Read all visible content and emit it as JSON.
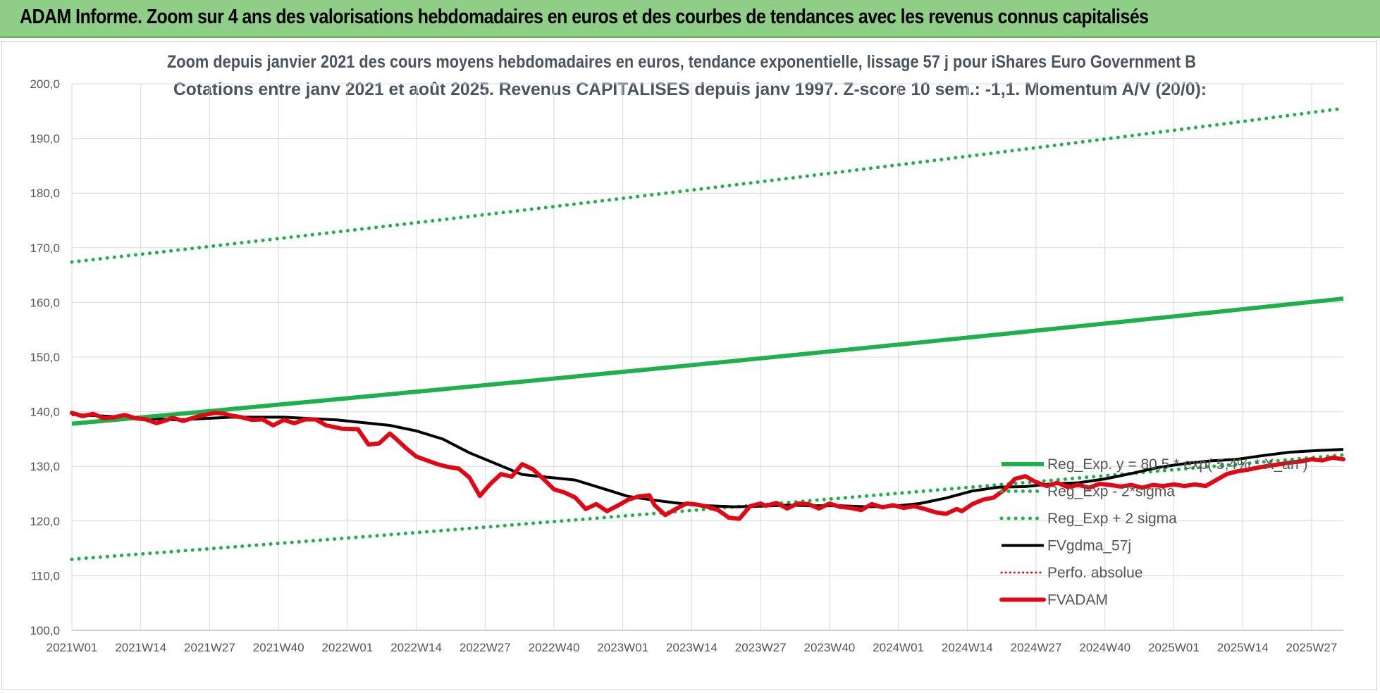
{
  "banner": {
    "title": "ADAM Informe. Zoom sur 4 ans des valorisations hebdomadaires en euros et des courbes de tendances avec les revenus connus capitalisés"
  },
  "colors": {
    "banner_bg": "#8fce86",
    "trend": "#1db04b",
    "sigma": "#1db04b",
    "fvgdma": "#000000",
    "perfo": "#e30613",
    "fvadam": "#e30613"
  },
  "chart_data": {
    "type": "line",
    "title": "Zoom depuis janvier 2021 des cours moyens hebdomadaires en euros, tendance exponentielle, lissage 57 j pour iShares Euro Government B",
    "subtitle": "Cotations entre janv 2021 et août 2025. Revenus CAPITALISES depuis janv 1997. Z-score 10 sem.: -1,1. Momentum A/V (20/0):",
    "xlabel": "",
    "ylabel": "",
    "ylim": [
      100,
      200
    ],
    "y_ticks": [
      "100,0",
      "110,0",
      "120,0",
      "130,0",
      "140,0",
      "150,0",
      "160,0",
      "170,0",
      "180,0",
      "190,0",
      "200,0"
    ],
    "x_ticks": [
      "2021W01",
      "2021W14",
      "2021W27",
      "2021W40",
      "2022W01",
      "2022W14",
      "2022W27",
      "2022W40",
      "2023W01",
      "2023W14",
      "2023W27",
      "2023W40",
      "2024W01",
      "2024W14",
      "2024W27",
      "2024W40",
      "2025W01",
      "2025W14",
      "2025W27"
    ],
    "x_range_weeks": [
      0,
      240
    ],
    "grid": true,
    "legend_position": "right",
    "series": [
      {
        "name": "Reg_Exp. y = 80,5 * exp( 5,4% * X_an )",
        "style": "trend",
        "x": [
          0,
          240
        ],
        "values": [
          137.8,
          160.7
        ]
      },
      {
        "name": "Reg_Exp - 2*sigma",
        "style": "sigma",
        "x": [
          0,
          240
        ],
        "values": [
          113.0,
          132.1
        ]
      },
      {
        "name": "Reg_Exp + 2 sigma",
        "style": "sigma",
        "x": [
          0,
          240
        ],
        "values": [
          167.4,
          195.5
        ]
      },
      {
        "name": "FVgdma_57j",
        "style": "fvgdma",
        "x": [
          0,
          10,
          20,
          30,
          40,
          50,
          55,
          60,
          65,
          70,
          75,
          80,
          85,
          90,
          95,
          100,
          105,
          110,
          115,
          120,
          125,
          130,
          135,
          140,
          145,
          150,
          155,
          160,
          165,
          170,
          175,
          180,
          185,
          190,
          195,
          200,
          205,
          210,
          215,
          220,
          225,
          230,
          235,
          240
        ],
        "values": [
          139.5,
          139.0,
          138.5,
          139.0,
          139.0,
          138.5,
          138.0,
          137.5,
          136.5,
          135.0,
          132.5,
          130.5,
          128.5,
          128.0,
          127.5,
          126.0,
          124.5,
          123.8,
          123.2,
          122.8,
          122.6,
          122.7,
          122.9,
          122.8,
          122.8,
          122.6,
          122.7,
          123.2,
          124.2,
          125.5,
          126.2,
          126.3,
          126.8,
          127.0,
          127.7,
          128.7,
          129.8,
          130.5,
          131.0,
          131.3,
          132.0,
          132.6,
          132.9,
          133.1
        ]
      },
      {
        "name": "Perfo. absolue",
        "style": "perfo",
        "x": [],
        "values": []
      },
      {
        "name": "FVADAM",
        "style": "fvadam",
        "x": [
          0,
          2,
          4,
          6,
          8,
          10,
          12,
          14,
          16,
          18,
          19,
          21,
          24,
          27,
          29,
          30,
          32,
          34,
          36,
          38,
          40,
          42,
          44,
          46,
          48,
          51,
          54,
          56,
          58,
          60,
          61,
          63,
          65,
          67,
          69,
          71,
          73,
          75,
          77,
          79,
          81,
          83,
          85,
          87,
          89,
          91,
          93,
          95,
          97,
          99,
          101,
          103,
          105,
          107,
          109,
          110,
          112,
          114,
          116,
          118,
          120,
          122,
          124,
          126,
          128,
          130,
          131,
          133,
          135,
          137,
          139,
          141,
          143,
          145,
          147,
          149,
          151,
          153,
          155,
          157,
          159,
          161,
          163,
          165,
          167,
          168,
          170,
          172,
          174,
          176,
          178,
          180,
          182,
          184,
          186,
          188,
          190,
          192,
          194,
          196,
          198,
          200,
          202,
          204,
          206,
          208,
          210,
          212,
          214,
          216,
          218,
          220,
          222,
          224,
          226,
          228,
          230,
          232,
          234,
          236,
          238,
          240
        ],
        "values": [
          139.8,
          139.2,
          139.6,
          138.8,
          139.0,
          139.4,
          138.8,
          138.6,
          137.9,
          138.5,
          138.9,
          138.3,
          139.2,
          139.8,
          139.6,
          139.3,
          139.0,
          138.5,
          138.6,
          137.5,
          138.5,
          137.9,
          138.6,
          138.6,
          137.5,
          136.9,
          136.8,
          134.0,
          134.2,
          136.0,
          135.2,
          133.4,
          131.8,
          131.1,
          130.4,
          129.9,
          129.6,
          128.0,
          124.6,
          126.8,
          128.6,
          128.1,
          130.4,
          129.5,
          127.7,
          125.8,
          125.2,
          124.3,
          122.2,
          123.1,
          121.8,
          122.8,
          123.9,
          124.5,
          124.7,
          122.9,
          121.1,
          122.2,
          123.2,
          123.0,
          122.6,
          122.0,
          120.6,
          120.4,
          122.7,
          123.2,
          122.8,
          123.3,
          122.3,
          123.2,
          123.1,
          122.3,
          123.2,
          122.6,
          122.4,
          122.0,
          123.1,
          122.5,
          122.9,
          122.4,
          122.7,
          122.2,
          121.6,
          121.3,
          122.2,
          121.8,
          123.1,
          123.9,
          124.3,
          125.7,
          127.7,
          128.2,
          127.1,
          126.4,
          127.0,
          126.2,
          126.6,
          126.1,
          126.8,
          126.6,
          126.3,
          126.6,
          126.1,
          126.6,
          126.4,
          126.7,
          126.4,
          126.7,
          126.4,
          127.5,
          128.6,
          129.1,
          129.4,
          129.8,
          130.1,
          130.4,
          130.7,
          130.9,
          131.3,
          131.1,
          131.6,
          131.3
        ]
      }
    ]
  }
}
